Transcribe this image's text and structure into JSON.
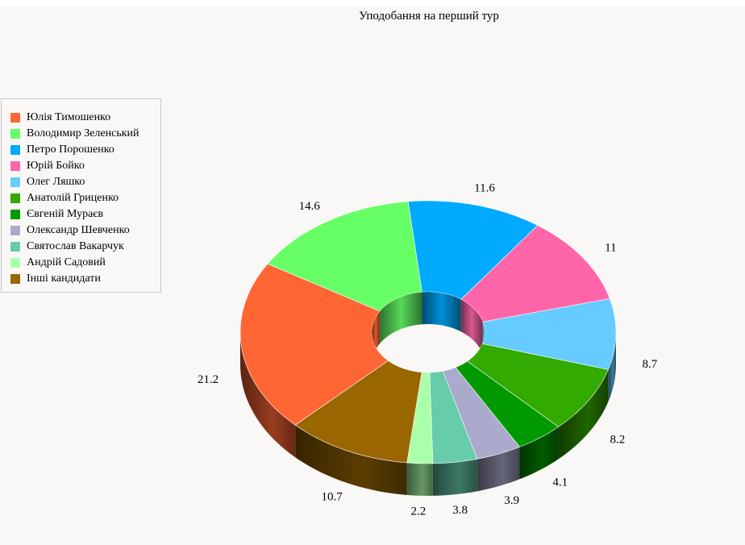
{
  "chart_data": {
    "type": "pie",
    "variant": "3d-donut",
    "title": "Уподобання на перший тур",
    "legend_position": "left",
    "categories": [
      "Юлія Тимошенко",
      "Володимир Зеленський",
      "Петро Порошенко",
      "Юрій Бойко",
      "Олег Ляшко",
      "Анатолій Гриценко",
      "Євгеній Мураєв",
      "Олександр Шевченко",
      "Святослав Вакарчук",
      "Андрій Садовий",
      "Інші кандидати"
    ],
    "values": [
      21.2,
      14.6,
      11.6,
      11,
      8.7,
      8.2,
      4.1,
      3.9,
      3.8,
      2.2,
      10.7
    ],
    "value_labels": [
      "21.2",
      "14.6",
      "11.6",
      "11",
      "8.7",
      "8.2",
      "4.1",
      "3.9",
      "3.8",
      "2.2",
      "10.7"
    ],
    "colors": [
      "#ff6633",
      "#66ff66",
      "#00aaff",
      "#ff66aa",
      "#66ccff",
      "#33aa00",
      "#009900",
      "#aaaacc",
      "#66ccaa",
      "#aaffaa",
      "#996600"
    ]
  }
}
